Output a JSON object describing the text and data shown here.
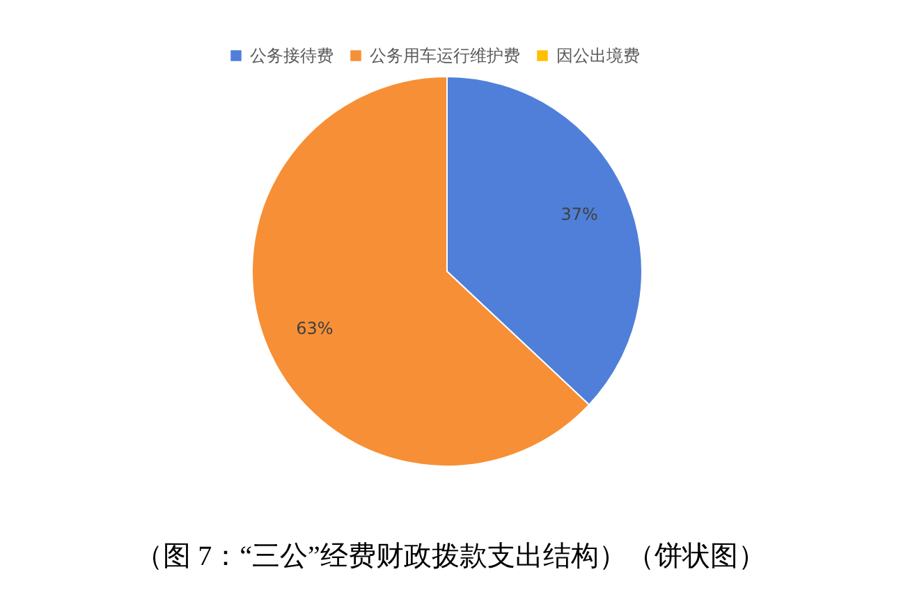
{
  "chart_data": {
    "type": "pie",
    "categories": [
      "公务接待费",
      "公务用车运行维护费",
      "因公出境费"
    ],
    "values": [
      37,
      63,
      0
    ],
    "colors": [
      "#4f7fd9",
      "#f78f36",
      "#ffc000"
    ],
    "value_labels": [
      "37%",
      "63%",
      null
    ],
    "legend": "top",
    "annotations": [
      "（图 7：“三公”经费财政拨款支出结构）（饼状图）"
    ]
  }
}
